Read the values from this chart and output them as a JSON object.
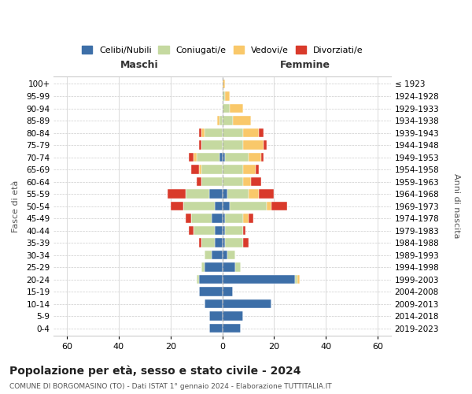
{
  "age_groups": [
    "0-4",
    "5-9",
    "10-14",
    "15-19",
    "20-24",
    "25-29",
    "30-34",
    "35-39",
    "40-44",
    "45-49",
    "50-54",
    "55-59",
    "60-64",
    "65-69",
    "70-74",
    "75-79",
    "80-84",
    "85-89",
    "90-94",
    "95-99",
    "100+"
  ],
  "birth_years": [
    "2019-2023",
    "2014-2018",
    "2009-2013",
    "2004-2008",
    "1999-2003",
    "1994-1998",
    "1989-1993",
    "1984-1988",
    "1979-1983",
    "1974-1978",
    "1969-1973",
    "1964-1968",
    "1959-1963",
    "1954-1958",
    "1949-1953",
    "1944-1948",
    "1939-1943",
    "1934-1938",
    "1929-1933",
    "1924-1928",
    "≤ 1923"
  ],
  "male": {
    "celibi": [
      5,
      5,
      7,
      9,
      9,
      7,
      4,
      3,
      3,
      4,
      3,
      5,
      0,
      0,
      1,
      0,
      0,
      0,
      0,
      0,
      0
    ],
    "coniugati": [
      0,
      0,
      0,
      0,
      1,
      1,
      3,
      5,
      8,
      8,
      12,
      9,
      8,
      8,
      9,
      8,
      7,
      1,
      0,
      0,
      0
    ],
    "vedovi": [
      0,
      0,
      0,
      0,
      0,
      0,
      0,
      0,
      0,
      0,
      0,
      0,
      0,
      1,
      1,
      0,
      1,
      1,
      0,
      0,
      0
    ],
    "divorziati": [
      0,
      0,
      0,
      0,
      0,
      0,
      0,
      1,
      2,
      2,
      5,
      7,
      2,
      3,
      2,
      1,
      1,
      0,
      0,
      0,
      0
    ]
  },
  "female": {
    "nubili": [
      7,
      8,
      19,
      4,
      28,
      5,
      2,
      1,
      1,
      1,
      3,
      2,
      0,
      0,
      1,
      0,
      0,
      0,
      0,
      0,
      0
    ],
    "coniugate": [
      0,
      0,
      0,
      0,
      1,
      2,
      3,
      7,
      7,
      7,
      14,
      8,
      8,
      8,
      9,
      8,
      8,
      4,
      3,
      1,
      0
    ],
    "vedove": [
      0,
      0,
      0,
      0,
      1,
      0,
      0,
      0,
      0,
      2,
      2,
      4,
      3,
      5,
      5,
      8,
      6,
      7,
      5,
      2,
      1
    ],
    "divorziate": [
      0,
      0,
      0,
      0,
      0,
      0,
      0,
      2,
      1,
      2,
      6,
      6,
      4,
      1,
      1,
      1,
      2,
      0,
      0,
      0,
      0
    ]
  },
  "colors": {
    "celibi": "#3d6fa8",
    "coniugati": "#c5d9a0",
    "vedovi": "#f9c86a",
    "divorziati": "#d93a2b"
  },
  "xlim": 65,
  "title": "Popolazione per età, sesso e stato civile - 2024",
  "subtitle": "COMUNE DI BORGOMASINO (TO) - Dati ISTAT 1° gennaio 2024 - Elaborazione TUTTITALIA.IT",
  "xlabel_left": "Maschi",
  "xlabel_right": "Femmine",
  "ylabel_left": "Fasce di età",
  "ylabel_right": "Anni di nascita",
  "legend_labels": [
    "Celibi/Nubili",
    "Coniugati/e",
    "Vedovi/e",
    "Divorziati/e"
  ],
  "bg_color": "#ffffff",
  "grid_color": "#cccccc"
}
